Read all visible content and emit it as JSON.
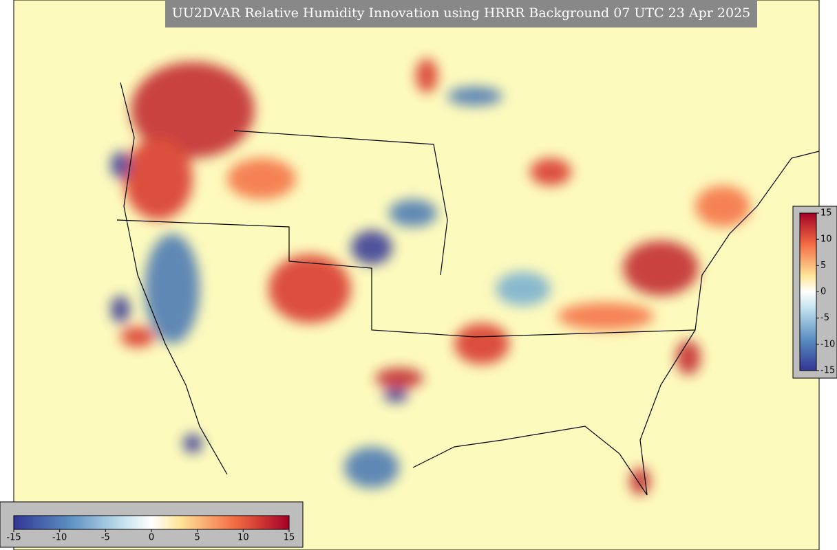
{
  "title": "UU2DVAR Relative Humidity Innovation using HRRR Background 07 UTC 23 Apr 2025",
  "colorbar_right": {
    "lim": [
      -15,
      15
    ],
    "ticks": [
      15,
      10,
      5,
      0,
      -5,
      -10,
      -15
    ]
  },
  "colorbar_bottom": {
    "lim": [
      -15,
      15
    ],
    "ticks": [
      -15,
      -10,
      -5,
      0,
      5,
      10,
      15
    ]
  }
}
